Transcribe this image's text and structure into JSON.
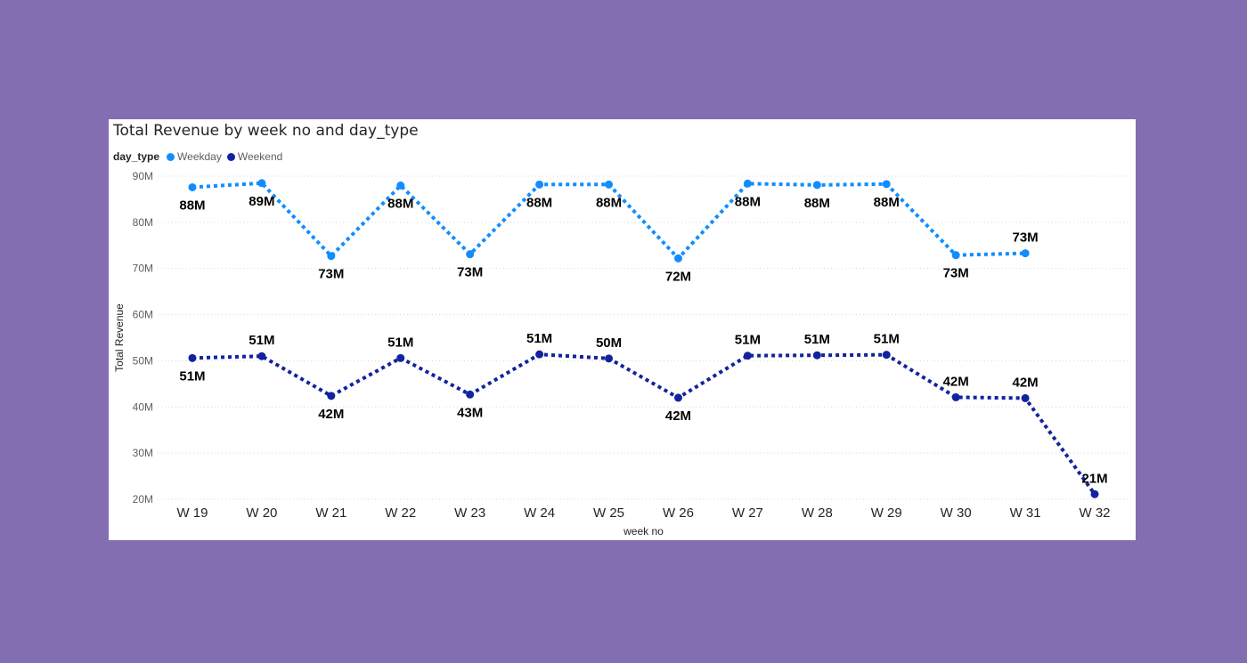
{
  "chart_data": {
    "type": "line",
    "title": "Total Revenue by week no and day_type",
    "xlabel": "week no",
    "ylabel": "Total Revenue",
    "legend_title": "day_type",
    "legend_position": "top-left",
    "ylim": [
      20,
      90
    ],
    "y_ticks": [
      {
        "value": 20,
        "label": "20M"
      },
      {
        "value": 30,
        "label": "30M"
      },
      {
        "value": 40,
        "label": "40M"
      },
      {
        "value": 50,
        "label": "50M"
      },
      {
        "value": 60,
        "label": "60M"
      },
      {
        "value": 70,
        "label": "70M"
      },
      {
        "value": 80,
        "label": "80M"
      },
      {
        "value": 90,
        "label": "90M"
      }
    ],
    "grid": true,
    "categories": [
      "W 19",
      "W 20",
      "W 21",
      "W 22",
      "W 23",
      "W 24",
      "W 25",
      "W 26",
      "W 27",
      "W 28",
      "W 29",
      "W 30",
      "W 31",
      "W 32"
    ],
    "series": [
      {
        "name": "Weekday",
        "color": "#118dff",
        "values": [
          87.6,
          88.5,
          72.7,
          88.0,
          73.1,
          88.2,
          88.2,
          72.2,
          88.4,
          88.1,
          88.3,
          72.9,
          73.3,
          null
        ],
        "labels": [
          "88M",
          "89M",
          "73M",
          "88M",
          "73M",
          "88M",
          "88M",
          "72M",
          "88M",
          "88M",
          "88M",
          "73M",
          "73M",
          null
        ],
        "label_pos": [
          "below",
          "below",
          "below",
          "below",
          "below",
          "below",
          "below",
          "below",
          "below",
          "below",
          "below",
          "below",
          "above",
          null
        ]
      },
      {
        "name": "Weekend",
        "color": "#12239e",
        "values": [
          50.6,
          51.0,
          42.4,
          50.6,
          42.7,
          51.4,
          50.5,
          42.0,
          51.1,
          51.2,
          51.3,
          42.1,
          41.9,
          21.1
        ],
        "labels": [
          "51M",
          "51M",
          "42M",
          "51M",
          "43M",
          "51M",
          "50M",
          "42M",
          "51M",
          "51M",
          "51M",
          "42M",
          "42M",
          "21M"
        ],
        "label_pos": [
          "below",
          "above",
          "below",
          "above",
          "below",
          "above",
          "above",
          "below",
          "above",
          "above",
          "above",
          "above",
          "above",
          "above"
        ]
      }
    ]
  }
}
